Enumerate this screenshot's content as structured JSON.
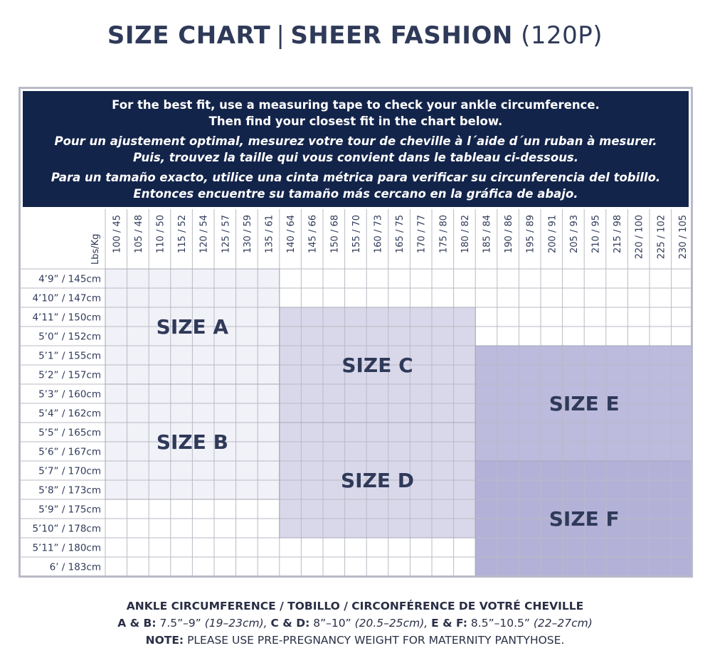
{
  "title": {
    "part1": "SIZE CHART",
    "separator": "|",
    "part2": "SHEER FASHION",
    "code": "(120P)"
  },
  "instructions": {
    "en_line1": "For the best fit, use a measuring tape to check your ankle circumference.",
    "en_line2": "Then find your closest fit in the chart below.",
    "fr_line1": "Pour un ajustement optimal, mesurez votre tour de cheville à l´aide d´un ruban à mesurer.",
    "fr_line2": "Puis, trouvez la taille qui vous convient dans le tableau ci-dessous.",
    "es_line1": "Para un tamaño exacto, utilice una cinta métrica para verificar su circunferencia del tobillo.",
    "es_line2": "Entonces encuentre su tamaño más cercano en la gráfica de abajo."
  },
  "table": {
    "corner_label": "Lbs/Kg",
    "weights": [
      "100 / 45",
      "105 / 48",
      "110 / 50",
      "115 / 52",
      "120 / 54",
      "125 / 57",
      "130 / 59",
      "135 / 61",
      "140 / 64",
      "145 / 66",
      "150 / 68",
      "155 / 70",
      "160 / 73",
      "165 / 75",
      "170 / 77",
      "175 / 80",
      "180 / 82",
      "185 / 84",
      "190 / 86",
      "195 / 89",
      "200 / 91",
      "205 / 93",
      "210 / 95",
      "215 / 98",
      "220 / 100",
      "225 / 102",
      "230 / 105"
    ],
    "heights": [
      "4’9” / 145cm",
      "4’10” / 147cm",
      "4’11” / 150cm",
      "5’0” / 152cm",
      "5’1” / 155cm",
      "5’2” / 157cm",
      "5’3” / 160cm",
      "5’4” / 162cm",
      "5’5” / 165cm",
      "5’6” / 167cm",
      "5’7” / 170cm",
      "5’8” / 173cm",
      "5’9” / 175cm",
      "5’10” / 178cm",
      "5’11” / 180cm",
      "6’ / 183cm"
    ],
    "zones": [
      {
        "label": "SIZE A",
        "col_start": 0,
        "col_end": 7,
        "row_start": 0,
        "row_end": 5,
        "color": "#f1f1f8"
      },
      {
        "label": "SIZE B",
        "col_start": 0,
        "col_end": 7,
        "row_start": 6,
        "row_end": 11,
        "color": "#f1f1f8"
      },
      {
        "label": "SIZE C",
        "col_start": 8,
        "col_end": 16,
        "row_start": 2,
        "row_end": 7,
        "color": "#d9d8ea"
      },
      {
        "label": "SIZE D",
        "col_start": 8,
        "col_end": 16,
        "row_start": 8,
        "row_end": 13,
        "color": "#d9d8ea"
      },
      {
        "label": "SIZE E",
        "col_start": 17,
        "col_end": 26,
        "row_start": 4,
        "row_end": 9,
        "color": "#bcbadd"
      },
      {
        "label": "SIZE F",
        "col_start": 17,
        "col_end": 26,
        "row_start": 10,
        "row_end": 15,
        "color": "#b3b1d8"
      }
    ],
    "extra_white_cells": [
      {
        "col": 26,
        "row_start": 0,
        "row_end": 3
      }
    ]
  },
  "footer": {
    "heading": "ANKLE CIRCUMFERENCE / TOBILLO / CIRCONFÉRENCE DE VOTRÉ CHEVILLE",
    "ab_label": "A & B:",
    "ab_value": "7.5”–9”",
    "ab_metric": "(19–23cm),",
    "cd_label": "C & D:",
    "cd_value": "8”–10”",
    "cd_metric": "(20.5–25cm),",
    "ef_label": "E & F:",
    "ef_value": "8.5”–10.5”",
    "ef_metric": "(22–27cm)",
    "note_label": "NOTE:",
    "note_text": "PLEASE USE PRE-PREGNANCY WEIGHT FOR MATERNITY PANTYHOSE."
  },
  "colors": {
    "navy": "#13244a",
    "title_text": "#2f3a59",
    "frame_border": "#b8bac8",
    "grid_line": "#b9bac5",
    "label_text": "#2f3a59"
  }
}
